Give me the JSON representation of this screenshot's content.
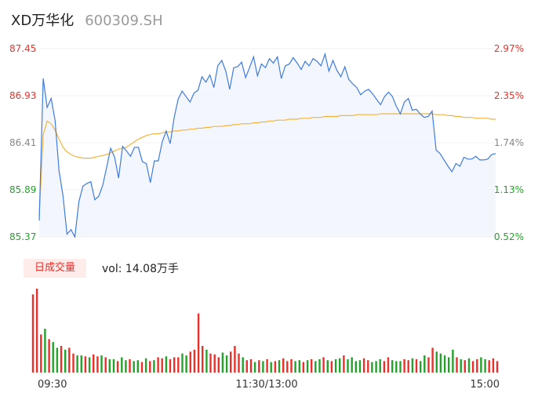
{
  "header": {
    "name": "XD万华化",
    "code": "600309.SH"
  },
  "volume": {
    "tab_label": "日成交量",
    "vol_text": "vol: 14.08万手"
  },
  "colors": {
    "price": "#3e7bdc",
    "avg": "#f3b33d",
    "up": "#e8312b",
    "down": "#25a12c",
    "neutral": "#888888"
  },
  "chart_data": {
    "type": "line",
    "price_axis": {
      "ylim": [
        85.37,
        87.45
      ],
      "ticks": [
        "87.45",
        "86.93",
        "86.41",
        "85.89",
        "85.37"
      ],
      "pct_ticks": [
        "2.97%",
        "2.35%",
        "1.74%",
        "1.13%",
        "0.52%"
      ]
    },
    "x_labels": [
      "09:30",
      "11:30/13:00",
      "15:00"
    ],
    "price": [
      85.55,
      87.12,
      86.8,
      86.9,
      86.66,
      86.1,
      85.82,
      85.4,
      85.45,
      85.37,
      85.76,
      85.93,
      85.96,
      85.98,
      85.78,
      85.82,
      85.94,
      86.14,
      86.35,
      86.25,
      86.02,
      86.37,
      86.32,
      86.26,
      86.36,
      86.36,
      86.2,
      86.18,
      85.97,
      86.21,
      86.21,
      86.42,
      86.54,
      86.4,
      86.69,
      86.89,
      86.98,
      86.92,
      86.86,
      86.96,
      86.99,
      87.14,
      87.08,
      87.16,
      87.02,
      87.26,
      87.32,
      87.2,
      87.0,
      87.24,
      87.25,
      87.3,
      87.13,
      87.24,
      87.36,
      87.15,
      87.28,
      87.24,
      87.34,
      87.29,
      87.36,
      87.12,
      87.26,
      87.28,
      87.35,
      87.29,
      87.22,
      87.31,
      87.26,
      87.34,
      87.31,
      87.26,
      87.39,
      87.2,
      87.32,
      87.21,
      87.14,
      87.25,
      87.11,
      87.06,
      87.02,
      86.94,
      86.98,
      87.0,
      86.95,
      86.89,
      86.83,
      86.92,
      86.97,
      86.92,
      86.81,
      86.73,
      86.86,
      86.9,
      86.77,
      86.78,
      86.73,
      86.69,
      86.7,
      86.76,
      86.33,
      86.29,
      86.22,
      86.15,
      86.09,
      86.18,
      86.15,
      86.25,
      86.23,
      86.23,
      86.26,
      86.22,
      86.22,
      86.23,
      86.28,
      86.29
    ],
    "avg": [
      85.6,
      86.5,
      86.65,
      86.62,
      86.55,
      86.45,
      86.36,
      86.31,
      86.28,
      86.26,
      86.25,
      86.24,
      86.24,
      86.24,
      86.25,
      86.26,
      86.27,
      86.28,
      86.3,
      86.32,
      86.34,
      86.35,
      86.36,
      86.39,
      86.42,
      86.45,
      86.47,
      86.49,
      86.5,
      86.51,
      86.51,
      86.52,
      86.53,
      86.53,
      86.54,
      86.54,
      86.55,
      86.55,
      86.56,
      86.56,
      86.57,
      86.57,
      86.58,
      86.58,
      86.59,
      86.59,
      86.59,
      86.6,
      86.6,
      86.61,
      86.61,
      86.62,
      86.62,
      86.62,
      86.63,
      86.63,
      86.64,
      86.64,
      86.65,
      86.65,
      86.66,
      86.66,
      86.66,
      86.67,
      86.67,
      86.67,
      86.68,
      86.68,
      86.68,
      86.69,
      86.69,
      86.69,
      86.7,
      86.7,
      86.7,
      86.7,
      86.71,
      86.71,
      86.71,
      86.71,
      86.72,
      86.72,
      86.72,
      86.72,
      86.72,
      86.72,
      86.73,
      86.73,
      86.73,
      86.73,
      86.73,
      86.73,
      86.73,
      86.73,
      86.73,
      86.73,
      86.73,
      86.73,
      86.73,
      86.73,
      86.72,
      86.72,
      86.72,
      86.71,
      86.71,
      86.7,
      86.7,
      86.69,
      86.69,
      86.69,
      86.68,
      86.68,
      86.68,
      86.68,
      86.67,
      86.67
    ],
    "volumes": [
      82,
      88,
      40,
      46,
      35,
      32,
      26,
      28,
      24,
      26,
      20,
      18,
      18,
      17,
      16,
      19,
      17,
      18,
      16,
      14,
      14,
      12,
      16,
      13,
      14,
      12,
      13,
      11,
      15,
      12,
      13,
      16,
      15,
      17,
      14,
      16,
      16,
      20,
      18,
      22,
      24,
      62,
      28,
      24,
      20,
      19,
      16,
      21,
      18,
      22,
      28,
      20,
      16,
      13,
      14,
      11,
      13,
      12,
      14,
      11,
      12,
      13,
      15,
      12,
      14,
      12,
      13,
      11,
      13,
      14,
      12,
      14,
      16,
      13,
      12,
      14,
      15,
      18,
      14,
      16,
      12,
      13,
      15,
      13,
      11,
      12,
      14,
      12,
      16,
      13,
      12,
      12,
      14,
      13,
      15,
      14,
      12,
      18,
      16,
      26,
      22,
      20,
      18,
      16,
      24,
      16,
      14,
      13,
      15,
      12,
      14,
      16,
      14,
      13,
      15,
      12
    ],
    "volume_dirs": [
      1,
      1,
      1,
      0,
      1,
      0,
      0,
      1,
      0,
      1,
      1,
      0,
      0,
      1,
      0,
      1,
      1,
      0,
      1,
      0,
      0,
      1,
      0,
      0,
      1,
      0,
      0,
      1,
      0,
      1,
      0,
      1,
      1,
      0,
      1,
      1,
      1,
      0,
      0,
      1,
      1,
      1,
      1,
      0,
      1,
      1,
      1,
      0,
      0,
      1,
      1,
      1,
      0,
      1,
      1,
      0,
      1,
      0,
      1,
      0,
      1,
      0,
      1,
      1,
      1,
      0,
      0,
      1,
      0,
      1,
      0,
      0,
      1,
      0,
      1,
      0,
      0,
      1,
      0,
      0,
      0,
      0,
      1,
      1,
      0,
      0,
      0,
      1,
      1,
      0,
      0,
      0,
      1,
      1,
      0,
      1,
      0,
      0,
      1,
      1,
      0,
      0,
      0,
      0,
      0,
      1,
      0,
      1,
      0,
      1,
      1,
      0,
      0,
      1,
      1,
      1
    ]
  }
}
